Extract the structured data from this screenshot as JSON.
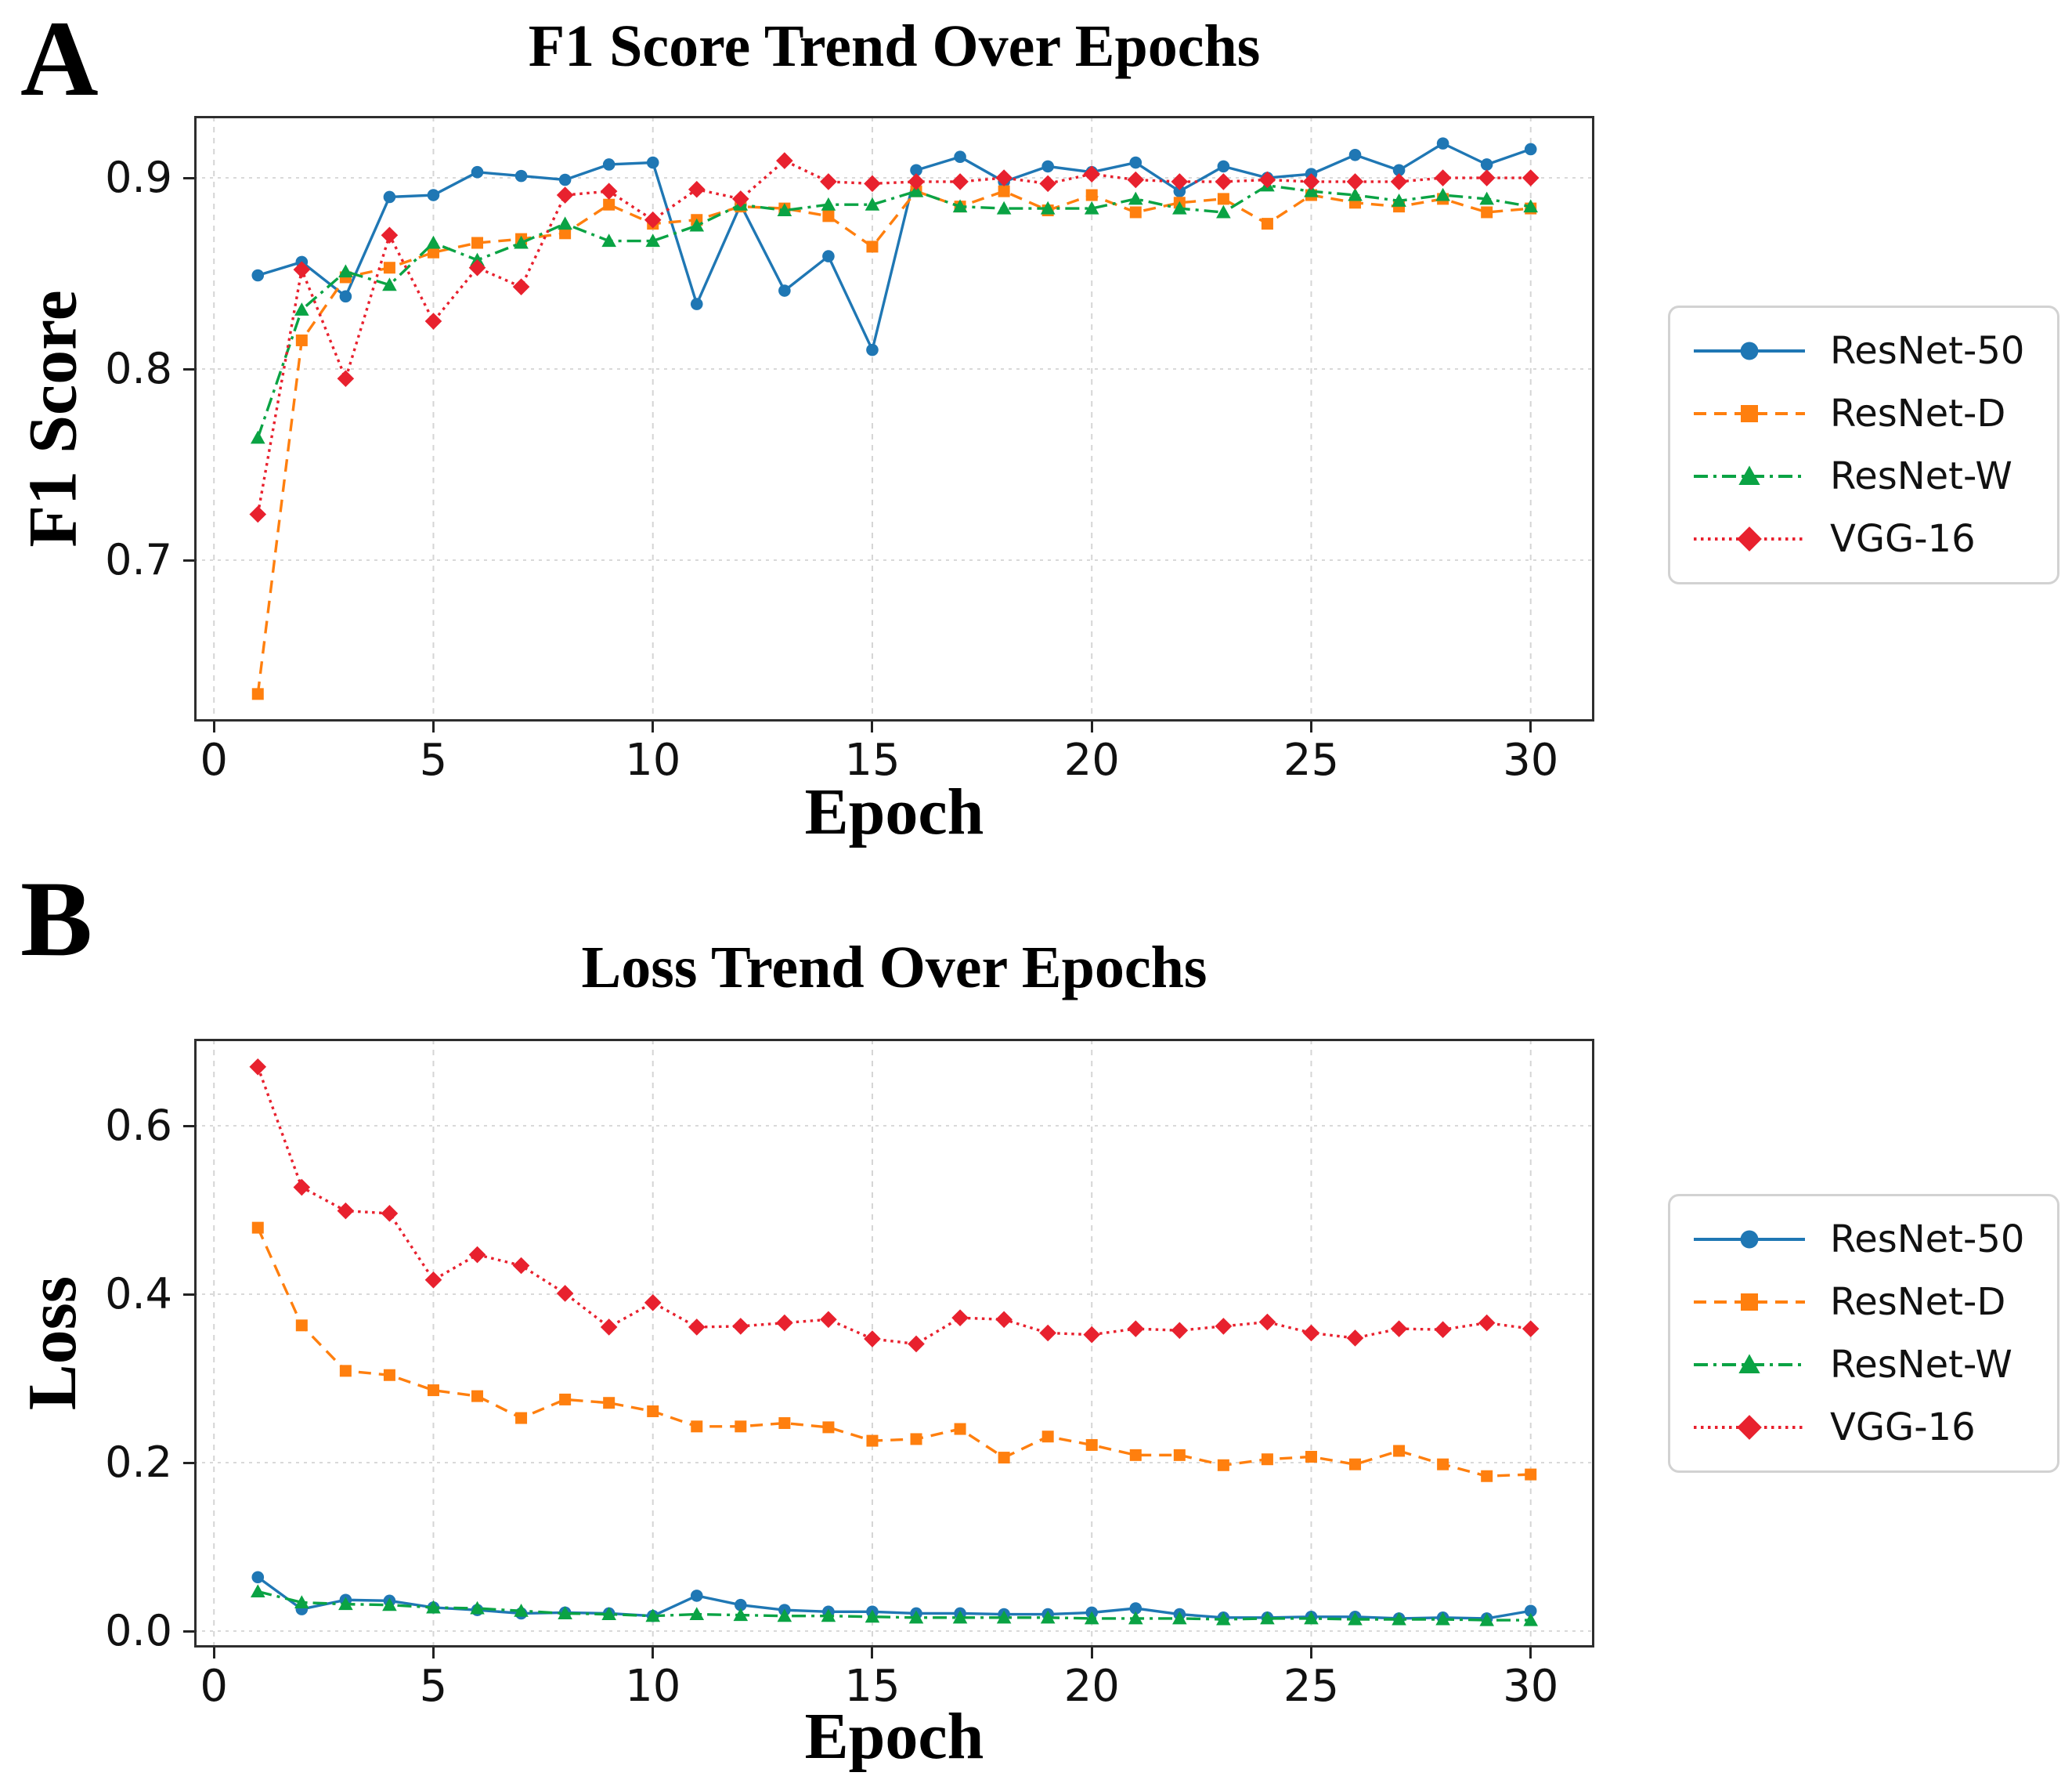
{
  "figure": {
    "background": "#ffffff",
    "panels": [
      {
        "label": "A"
      },
      {
        "label": "B"
      }
    ]
  },
  "legend": {
    "entries": [
      {
        "name": "ResNet-50",
        "color": "#1f77b4",
        "linestyle": "solid",
        "marker": "circle"
      },
      {
        "name": "ResNet-D",
        "color": "#ff7f0e",
        "linestyle": "dashed",
        "marker": "square"
      },
      {
        "name": "ResNet-W",
        "color": "#0aa344",
        "linestyle": "dashdot",
        "marker": "triangle"
      },
      {
        "name": "VGG-16",
        "color": "#e8212e",
        "linestyle": "dotted",
        "marker": "diamond"
      }
    ]
  },
  "chart_data": [
    {
      "type": "line",
      "title": "F1 Score Trend Over Epochs",
      "xlabel": "Epoch",
      "ylabel": "F1 Score",
      "grid": true,
      "legend_position": "right",
      "xlim": [
        -0.45,
        31.45
      ],
      "ylim": [
        0.6156,
        0.9324
      ],
      "xticks": [
        0,
        5,
        10,
        15,
        20,
        25,
        30
      ],
      "yticks": [
        0.9,
        0.8,
        0.7
      ],
      "ytick_labels": [
        "0.9",
        "0.8",
        "0.7"
      ],
      "x": [
        1,
        2,
        3,
        4,
        5,
        6,
        7,
        8,
        9,
        10,
        11,
        12,
        13,
        14,
        15,
        16,
        17,
        18,
        19,
        20,
        21,
        22,
        23,
        24,
        25,
        26,
        27,
        28,
        29,
        30
      ],
      "series": [
        {
          "name": "ResNet-50",
          "color": "#1f77b4",
          "linestyle": "solid",
          "marker": "circle",
          "values": [
            0.849,
            0.856,
            0.838,
            0.89,
            0.891,
            0.903,
            0.901,
            0.899,
            0.907,
            0.908,
            0.834,
            0.886,
            0.841,
            0.859,
            0.81,
            0.904,
            0.911,
            0.898,
            0.906,
            0.903,
            0.908,
            0.893,
            0.906,
            0.9,
            0.902,
            0.912,
            0.904,
            0.918,
            0.907,
            0.915
          ]
        },
        {
          "name": "ResNet-D",
          "color": "#ff7f0e",
          "linestyle": "dashed",
          "marker": "square",
          "values": [
            0.63,
            0.815,
            0.848,
            0.853,
            0.861,
            0.866,
            0.868,
            0.871,
            0.886,
            0.876,
            0.878,
            0.885,
            0.884,
            0.88,
            0.864,
            0.893,
            0.885,
            0.893,
            0.883,
            0.891,
            0.882,
            0.887,
            0.889,
            0.876,
            0.891,
            0.887,
            0.885,
            0.889,
            0.882,
            0.884
          ]
        },
        {
          "name": "ResNet-W",
          "color": "#0aa344",
          "linestyle": "dashdot",
          "marker": "triangle",
          "values": [
            0.764,
            0.831,
            0.851,
            0.844,
            0.866,
            0.857,
            0.866,
            0.876,
            0.867,
            0.867,
            0.875,
            0.886,
            0.883,
            0.886,
            0.886,
            0.893,
            0.885,
            0.884,
            0.884,
            0.884,
            0.889,
            0.884,
            0.882,
            0.896,
            0.893,
            0.891,
            0.888,
            0.891,
            0.889,
            0.885
          ]
        },
        {
          "name": "VGG-16",
          "color": "#e8212e",
          "linestyle": "dotted",
          "marker": "diamond",
          "values": [
            0.724,
            0.852,
            0.795,
            0.87,
            0.825,
            0.853,
            0.843,
            0.891,
            0.893,
            0.878,
            0.894,
            0.889,
            0.909,
            0.898,
            0.897,
            0.898,
            0.898,
            0.9,
            0.897,
            0.902,
            0.899,
            0.898,
            0.898,
            0.899,
            0.898,
            0.898,
            0.898,
            0.9,
            0.9,
            0.9
          ]
        }
      ]
    },
    {
      "type": "line",
      "title": "Loss Trend Over Epochs",
      "xlabel": "Epoch",
      "ylabel": "Loss",
      "grid": true,
      "legend_position": "right",
      "xlim": [
        -0.45,
        31.45
      ],
      "ylim": [
        -0.0195,
        0.7033
      ],
      "xticks": [
        0,
        5,
        10,
        15,
        20,
        25,
        30
      ],
      "yticks": [
        0.6,
        0.4,
        0.2,
        0.0
      ],
      "ytick_labels": [
        "0.6",
        "0.4",
        "0.2",
        "0.0"
      ],
      "x": [
        1,
        2,
        3,
        4,
        5,
        6,
        7,
        8,
        9,
        10,
        11,
        12,
        13,
        14,
        15,
        16,
        17,
        18,
        19,
        20,
        21,
        22,
        23,
        24,
        25,
        26,
        27,
        28,
        29,
        30
      ],
      "series": [
        {
          "name": "ResNet-50",
          "color": "#1f77b4",
          "linestyle": "solid",
          "marker": "circle",
          "values": [
            0.064,
            0.026,
            0.037,
            0.036,
            0.028,
            0.025,
            0.021,
            0.022,
            0.021,
            0.018,
            0.042,
            0.031,
            0.025,
            0.023,
            0.023,
            0.021,
            0.021,
            0.02,
            0.02,
            0.022,
            0.027,
            0.02,
            0.016,
            0.016,
            0.017,
            0.017,
            0.015,
            0.016,
            0.015,
            0.024
          ]
        },
        {
          "name": "ResNet-D",
          "color": "#ff7f0e",
          "linestyle": "dashed",
          "marker": "square",
          "values": [
            0.479,
            0.363,
            0.309,
            0.304,
            0.286,
            0.279,
            0.253,
            0.275,
            0.271,
            0.261,
            0.243,
            0.243,
            0.247,
            0.242,
            0.226,
            0.228,
            0.24,
            0.206,
            0.231,
            0.221,
            0.209,
            0.209,
            0.197,
            0.204,
            0.207,
            0.198,
            0.214,
            0.198,
            0.184,
            0.186
          ]
        },
        {
          "name": "ResNet-W",
          "color": "#0aa344",
          "linestyle": "dashdot",
          "marker": "triangle",
          "values": [
            0.047,
            0.034,
            0.032,
            0.031,
            0.028,
            0.027,
            0.024,
            0.021,
            0.02,
            0.018,
            0.02,
            0.019,
            0.018,
            0.018,
            0.017,
            0.016,
            0.016,
            0.016,
            0.016,
            0.015,
            0.015,
            0.015,
            0.014,
            0.015,
            0.015,
            0.014,
            0.014,
            0.014,
            0.013,
            0.013
          ]
        },
        {
          "name": "VGG-16",
          "color": "#e8212e",
          "linestyle": "dotted",
          "marker": "diamond",
          "values": [
            0.67,
            0.527,
            0.499,
            0.496,
            0.417,
            0.447,
            0.434,
            0.401,
            0.361,
            0.39,
            0.361,
            0.362,
            0.366,
            0.37,
            0.347,
            0.341,
            0.372,
            0.37,
            0.354,
            0.352,
            0.359,
            0.357,
            0.362,
            0.367,
            0.354,
            0.348,
            0.359,
            0.358,
            0.366,
            0.359
          ]
        }
      ]
    }
  ]
}
